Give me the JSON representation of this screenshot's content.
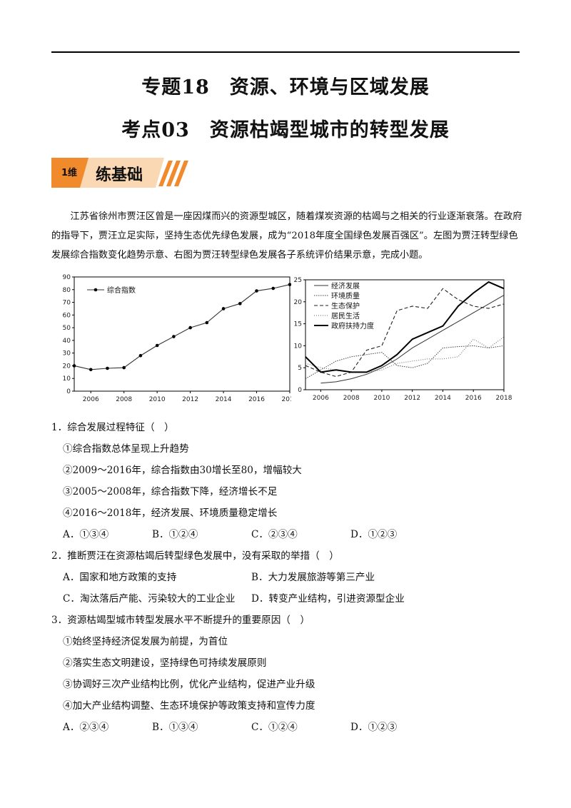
{
  "title_main": "专题18　资源、环境与区域发展",
  "title_sub": "考点03　资源枯竭型城市的转型发展",
  "banner": {
    "level": "1维",
    "label": "练基础"
  },
  "intro": "江苏省徐州市贾汪区曾是一座因煤而兴的资源型城区，随着煤炭资源的枯竭与之相关的行业逐渐衰落。在政府的指导下，贾汪立足实际，坚持生态优先绿色发展，成为“2018年度全国绿色发展百强区”。左图为贾汪转型绿色发展综合指数变化趋势示意、右图为贾汪转型绿色发展各子系统评价结果示意，完成小题。",
  "chart_data": [
    {
      "type": "line",
      "x": [
        2005,
        2006,
        2007,
        2008,
        2009,
        2010,
        2011,
        2012,
        2013,
        2014,
        2015,
        2016,
        2017,
        2018
      ],
      "series": [
        {
          "name": "综合指数",
          "values": [
            20,
            17,
            18,
            18.5,
            28,
            36,
            43,
            50,
            54,
            65,
            69,
            79,
            81,
            84
          ]
        }
      ],
      "x_ticks": [
        "2006",
        "2008",
        "2010",
        "2012",
        "2014",
        "2016",
        "2018"
      ],
      "y_ticks": [
        "0",
        "10",
        "20",
        "30",
        "40",
        "50",
        "60",
        "70",
        "80",
        "90"
      ],
      "ylim": [
        0,
        90
      ],
      "legend": "top-left"
    },
    {
      "type": "line",
      "x": [
        2005,
        2006,
        2007,
        2008,
        2009,
        2010,
        2011,
        2012,
        2013,
        2014,
        2015,
        2016,
        2017,
        2018
      ],
      "series": [
        {
          "name": "经济发展",
          "values": [
            null,
            1.5,
            1.8,
            2.5,
            3.5,
            5,
            7,
            9.5,
            11.5,
            13.5,
            15.5,
            17.5,
            19.5,
            21.5
          ]
        },
        {
          "name": "环境质量",
          "values": [
            2.5,
            4.5,
            6.5,
            7.5,
            8,
            8.5,
            5.5,
            5,
            6,
            9.5,
            9.8,
            10,
            9.5,
            10
          ]
        },
        {
          "name": "生态保护",
          "values": [
            5.5,
            4,
            3,
            4,
            9,
            10,
            18,
            19,
            18.5,
            23,
            20.5,
            19,
            18.5,
            19.5
          ]
        },
        {
          "name": "居民生活",
          "values": [
            6,
            5,
            4.5,
            4,
            4,
            4.5,
            6,
            6.5,
            7,
            7,
            7.5,
            11.5,
            9.5,
            12
          ]
        },
        {
          "name": "政府扶持力度",
          "values": [
            7.5,
            4,
            4.5,
            4,
            4,
            5.5,
            8,
            11.5,
            13,
            14.5,
            19,
            22,
            24.5,
            23
          ]
        }
      ],
      "x_ticks": [
        "2006",
        "2008",
        "2010",
        "2012",
        "2014",
        "2016",
        "2018"
      ],
      "y_ticks": [
        "0",
        "5",
        "10",
        "15",
        "20",
        "25"
      ],
      "ylim": [
        0,
        25
      ],
      "legend": "top-left"
    }
  ],
  "questions": [
    {
      "stem": "1．综合发展过程特征（　）",
      "items": [
        "①综合指数总体呈现上升趋势",
        "②2009～2016年，综合指数由30增长至80，增幅较大",
        "③2005～2008年，综合指数下降，经济增长不足",
        "④2016～2018年，经济发展、环境质量稳定增长"
      ],
      "options": [
        "A．①③④",
        "B．①②④",
        "C．②③④",
        "D．①②③"
      ]
    },
    {
      "stem": "2．推断贾汪在资源枯竭后转型绿色发展中，没有采取的举措（　）",
      "options": [
        "A．国家和地方政策的支持",
        "B．大力发展旅游等第三产业",
        "C．淘汰落后产能、污染较大的工业企业",
        "D．转变产业结构，引进资源型企业"
      ]
    },
    {
      "stem": "3．资源枯竭型城市转型发展水平不断提升的重要原因（　）",
      "items": [
        "①始终坚持经济促发展为前提，为首位",
        "②落实生态文明建设，坚持绿色可持续发展原则",
        "③协调好三次产业结构比例，优化产业结构，促进产业升级",
        "④加大产业结构调整、生态环境保护等政策支持和宣传力度"
      ],
      "options": [
        "A．②③④",
        "B．①③④",
        "C．①②④",
        "D．①②③"
      ]
    }
  ],
  "colors": {
    "banner_orange": "#f08a2c",
    "banner_pale": "#fbd8b4"
  }
}
